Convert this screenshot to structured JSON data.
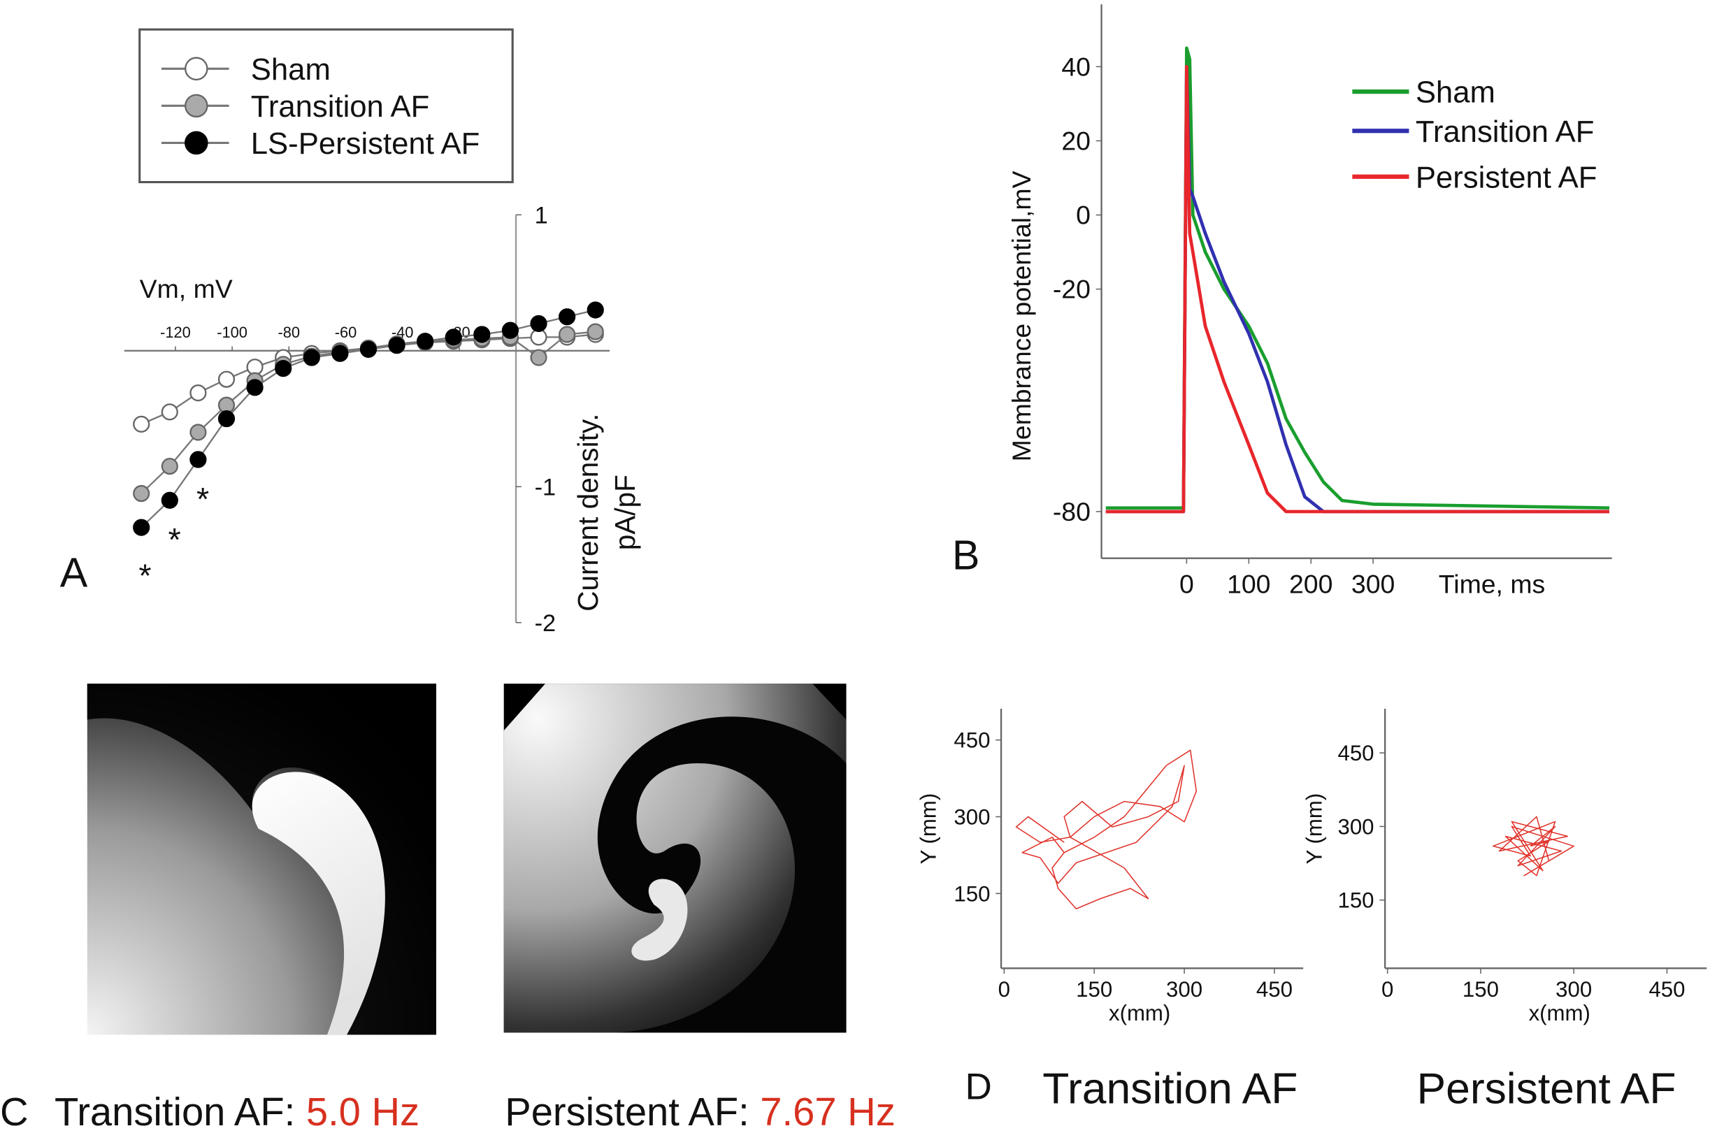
{
  "panel_labels": {
    "a": "A",
    "b": "B",
    "c": "C",
    "d": "D"
  },
  "chart_data": [
    {
      "type": "line",
      "x_label": "Vm, mV",
      "y_label": [
        "Current density.",
        "pA/pF"
      ],
      "x": [
        -132,
        -122,
        -112,
        -102,
        -92,
        -82,
        -72,
        -62,
        -52,
        -42,
        -32,
        -22,
        -12,
        -2,
        8,
        18,
        28
      ],
      "series": [
        {
          "name": "Sham",
          "color": "#ffffff",
          "values": [
            -0.54,
            -0.45,
            -0.31,
            -0.21,
            -0.12,
            -0.05,
            -0.02,
            0,
            0.02,
            0.04,
            0.06,
            0.07,
            0.08,
            0.09,
            0.1,
            0.1,
            0.12
          ]
        },
        {
          "name": "Transition AF",
          "color": "#aaaaaa",
          "values": [
            -1.05,
            -0.85,
            -0.6,
            -0.4,
            -0.22,
            -0.1,
            -0.04,
            -0.01,
            0.02,
            0.05,
            0.07,
            0.08,
            0.09,
            0.1,
            -0.05,
            0.12,
            0.14
          ]
        },
        {
          "name": "LS-Persistent AF",
          "color": "#000000",
          "values": [
            -1.3,
            -1.1,
            -0.8,
            -0.5,
            -0.27,
            -0.13,
            -0.05,
            -0.02,
            0.01,
            0.04,
            0.07,
            0.1,
            0.12,
            0.15,
            0.2,
            0.25,
            0.3
          ]
        }
      ],
      "xlim": [
        -138,
        33
      ],
      "ylim": [
        -2,
        1
      ],
      "xticks": [
        -120,
        -100,
        -80,
        -60,
        -40,
        -20
      ],
      "yticks": [
        1,
        -1,
        -2
      ],
      "markers": true,
      "annotations": [
        "*",
        "*",
        "*"
      ]
    },
    {
      "type": "line",
      "x_label": "Time, ms",
      "y_label": [
        "Membrance potential,mV"
      ],
      "x": [
        -130,
        -5,
        0,
        5,
        10,
        30,
        60,
        100,
        130,
        160,
        190,
        220,
        250,
        300,
        680
      ],
      "series": [
        {
          "name": "Sham",
          "color": "#1a9e2e",
          "values": [
            -79,
            -79,
            45,
            42,
            0,
            -10,
            -20,
            -30,
            -40,
            -55,
            -64,
            -72,
            -77,
            -78,
            -79
          ]
        },
        {
          "name": "Transition AF",
          "color": "#3030b0",
          "values": [
            -80,
            -80,
            40,
            7,
            5,
            -5,
            -18,
            -32,
            -45,
            -62,
            -76,
            -80,
            -80,
            -80,
            -80
          ]
        },
        {
          "name": "Persistent AF",
          "color": "#e8262b",
          "values": [
            -80,
            -80,
            40,
            -5,
            -10,
            -30,
            -45,
            -62,
            -75,
            -80,
            -80,
            -80,
            -80,
            -80,
            -80
          ]
        }
      ],
      "xlim": [
        -137,
        684
      ],
      "ylim": [
        -92.6,
        56.8
      ],
      "xticks": [
        0,
        100,
        200,
        300
      ],
      "yticks": [
        40,
        20,
        0,
        -20,
        -80
      ],
      "markers": false
    },
    {
      "type": "line",
      "title": "Transition AF",
      "x_label": "x(mm)",
      "y_label": [
        "Y (mm)"
      ],
      "x": [
        100,
        40,
        20,
        60,
        110,
        150,
        200,
        260,
        300,
        320,
        310,
        270,
        200,
        150,
        100,
        80,
        90,
        120,
        160,
        210,
        240,
        200,
        140,
        110,
        100,
        130,
        180,
        240,
        290,
        300,
        280,
        220,
        170,
        120,
        90,
        60,
        30,
        80,
        100
      ],
      "series": [
        {
          "color": "#e0342c",
          "values": [
            250,
            300,
            280,
            250,
            260,
            300,
            330,
            320,
            290,
            350,
            430,
            400,
            300,
            260,
            230,
            200,
            160,
            120,
            140,
            160,
            140,
            200,
            240,
            260,
            300,
            330,
            280,
            300,
            330,
            400,
            320,
            250,
            230,
            210,
            170,
            220,
            230,
            260,
            230
          ]
        }
      ],
      "xlim": [
        -5,
        498
      ],
      "ylim": [
        4,
        511
      ],
      "xticks": [
        0,
        150,
        300,
        450
      ],
      "yticks": [
        150,
        300,
        450
      ],
      "markers": false
    },
    {
      "type": "line",
      "title": "Persistent AF",
      "x_label": "x(mm)",
      "y_label": [
        "Y (mm)"
      ],
      "x": [
        230,
        270,
        210,
        280,
        190,
        250,
        200,
        290,
        180,
        240,
        260,
        220,
        300,
        200,
        230,
        170,
        270,
        240,
        210,
        260,
        230
      ],
      "series": [
        {
          "color": "#e0342c",
          "values": [
            260,
            300,
            220,
            250,
            280,
            210,
            310,
            280,
            250,
            320,
            230,
            200,
            260,
            300,
            240,
            260,
            310,
            200,
            230,
            270,
            260
          ]
        }
      ],
      "xlim": [
        -4,
        514
      ],
      "ylim": [
        11,
        540
      ],
      "xticks": [
        0,
        150,
        300,
        450
      ],
      "yticks": [
        150,
        300,
        450
      ],
      "markers": false
    }
  ],
  "panel_c": {
    "captions": [
      {
        "name": "Transition AF:",
        "value": "5.0 Hz"
      },
      {
        "name": "Persistent AF:",
        "value": "7.67 Hz"
      }
    ]
  }
}
